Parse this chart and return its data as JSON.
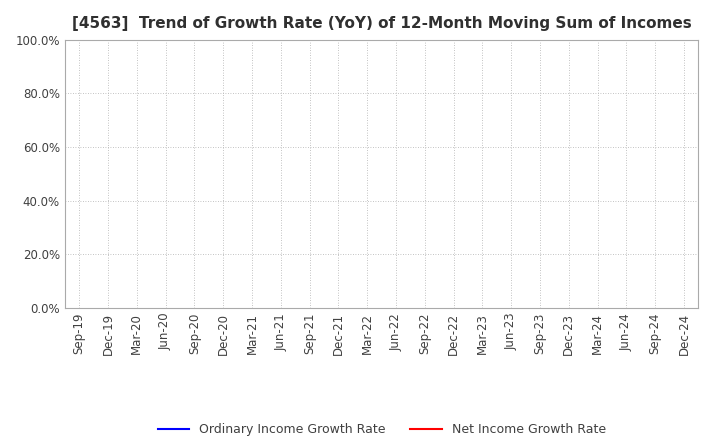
{
  "title": "[4563]  Trend of Growth Rate (YoY) of 12-Month Moving Sum of Incomes",
  "title_fontsize": 11,
  "ylim": [
    0.0,
    1.0
  ],
  "yticks": [
    0.0,
    0.2,
    0.4,
    0.6,
    0.8,
    1.0
  ],
  "ytick_labels": [
    "0.0%",
    "20.0%",
    "40.0%",
    "60.0%",
    "80.0%",
    "100.0%"
  ],
  "x_labels": [
    "Sep-19",
    "Dec-19",
    "Mar-20",
    "Jun-20",
    "Sep-20",
    "Dec-20",
    "Mar-21",
    "Jun-21",
    "Sep-21",
    "Dec-21",
    "Mar-22",
    "Jun-22",
    "Sep-22",
    "Dec-22",
    "Mar-23",
    "Jun-23",
    "Sep-23",
    "Dec-23",
    "Mar-24",
    "Jun-24",
    "Sep-24",
    "Dec-24"
  ],
  "ordinary_income": [
    null,
    null,
    null,
    null,
    null,
    null,
    null,
    null,
    null,
    null,
    null,
    null,
    null,
    null,
    null,
    null,
    null,
    null,
    null,
    null,
    null,
    null
  ],
  "net_income": [
    null,
    null,
    null,
    null,
    null,
    null,
    null,
    null,
    null,
    null,
    null,
    null,
    null,
    null,
    null,
    null,
    null,
    null,
    null,
    null,
    null,
    null
  ],
  "line_color_ordinary": "#0000ff",
  "line_color_net": "#ff0000",
  "line_width": 1.5,
  "legend_ordinary": "Ordinary Income Growth Rate",
  "legend_net": "Net Income Growth Rate",
  "grid_color": "#b0b0b0",
  "spine_color": "#aaaaaa",
  "background_color": "#ffffff",
  "plot_bg_color": "#ffffff",
  "title_color": "#303030",
  "tick_color": "#404040",
  "tick_fontsize": 8.5,
  "legend_fontsize": 9,
  "fig_width": 7.2,
  "fig_height": 4.4,
  "dpi": 100
}
